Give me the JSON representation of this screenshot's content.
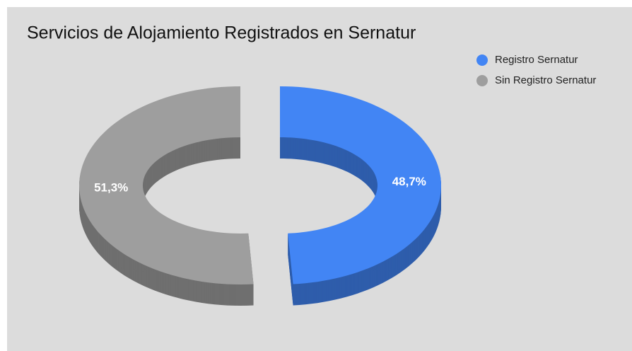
{
  "chart_data": {
    "type": "donut3d",
    "title": "Servicios de Alojamiento Registrados en Sernatur",
    "categories": [
      "Registro Sernatur",
      "Sin Registro Sernatur"
    ],
    "values": [
      48.7,
      51.3
    ],
    "value_labels": [
      "48,7%",
      "51,3%"
    ],
    "colors": [
      "#4285f4",
      "#9e9e9e"
    ],
    "legend": "top-right"
  }
}
